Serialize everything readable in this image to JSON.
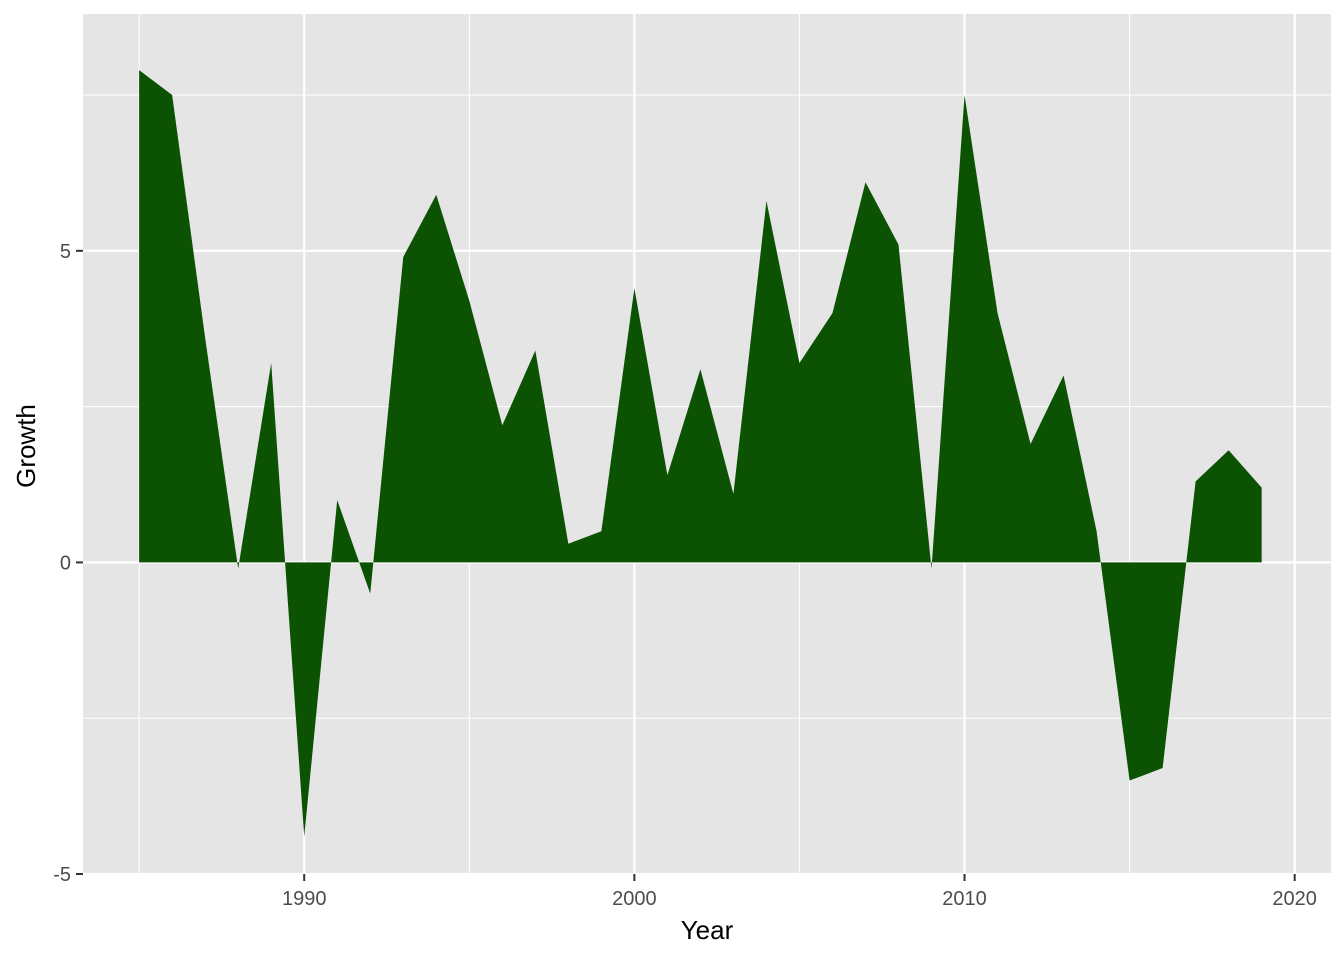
{
  "chart_data": {
    "type": "area",
    "title": "",
    "xlabel": "Year",
    "ylabel": "Growth",
    "xlim": [
      1983.3,
      2021.1
    ],
    "ylim": [
      -5,
      8.8
    ],
    "x_ticks": [
      1990,
      2000,
      2010,
      2020
    ],
    "x_tick_labels": [
      "1990",
      "2000",
      "2010",
      "2020"
    ],
    "y_ticks": [
      -5,
      0,
      5
    ],
    "y_tick_labels": [
      "-5",
      "0",
      "5"
    ],
    "grid": true,
    "fill_color": "#0b5303",
    "panel_background": "#e5e5e5",
    "series": [
      {
        "x": [
          1985,
          1986,
          1987,
          1988,
          1989,
          1990,
          1991,
          1992,
          1993,
          1994,
          1995,
          1996,
          1997,
          1998,
          1999,
          2000,
          2001,
          2002,
          2003,
          2004,
          2005,
          2006,
          2007,
          2008,
          2009,
          2010,
          2011,
          2012,
          2013,
          2014,
          2015,
          2016,
          2017,
          2018,
          2019
        ],
        "values": [
          7.9,
          7.5,
          3.6,
          -0.1,
          3.2,
          -4.4,
          1.0,
          -0.5,
          4.9,
          5.9,
          4.2,
          2.2,
          3.4,
          0.3,
          0.5,
          4.4,
          1.4,
          3.1,
          1.1,
          5.8,
          3.2,
          4.0,
          6.1,
          5.1,
          -0.1,
          7.5,
          4.0,
          1.9,
          3.0,
          0.5,
          -3.5,
          -3.3,
          1.3,
          1.8,
          1.2
        ]
      }
    ]
  }
}
